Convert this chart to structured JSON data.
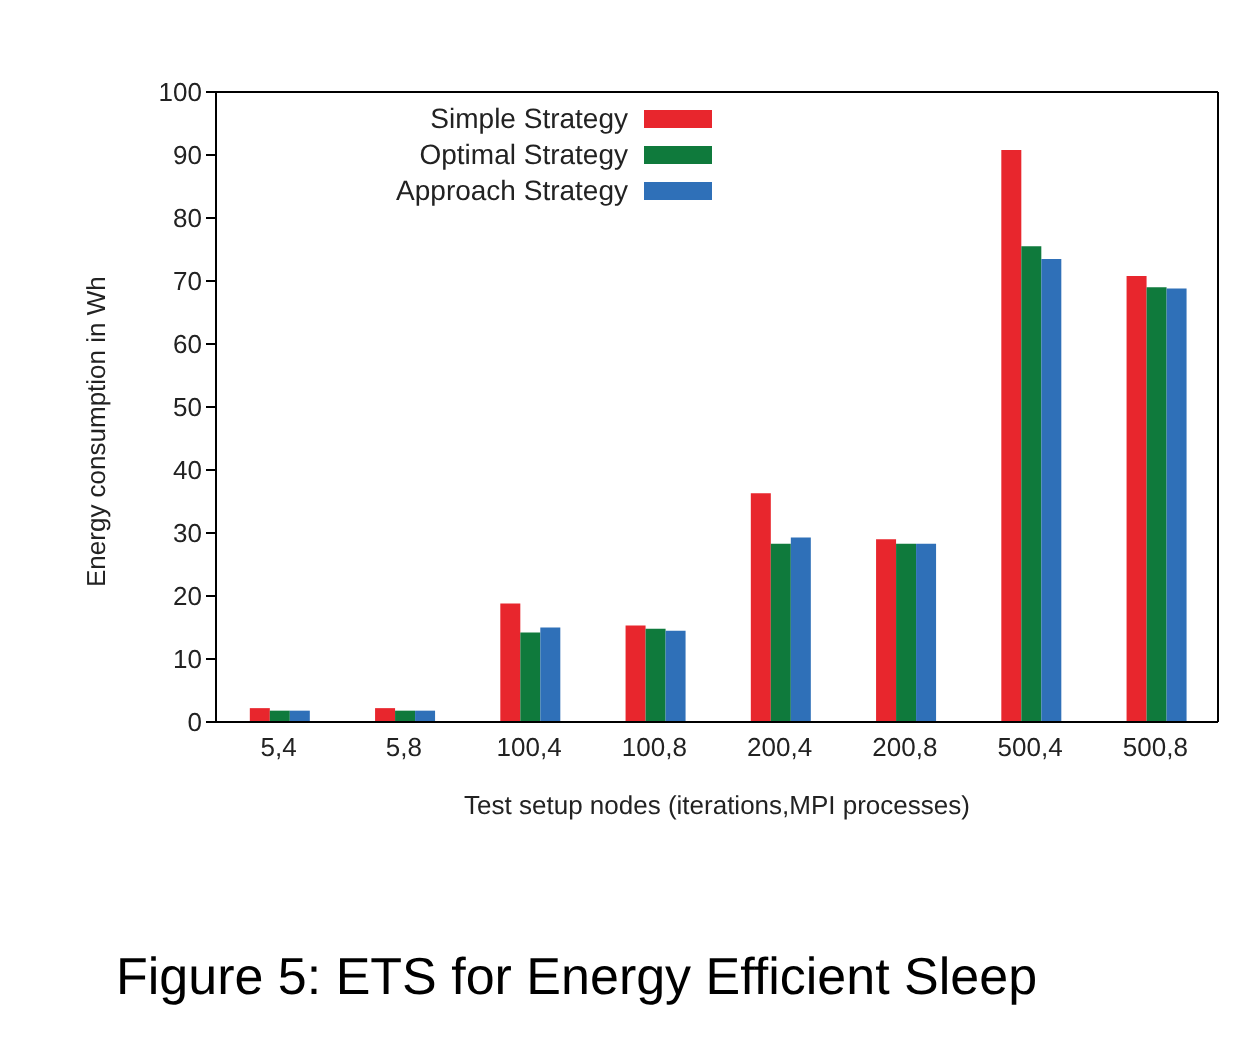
{
  "chart_data": {
    "type": "bar",
    "xlabel": "Test setup nodes (iterations,MPI processes)",
    "ylabel": "Energy consumption in Wh",
    "categories": [
      "5,4",
      "5,8",
      "100,4",
      "100,8",
      "200,4",
      "200,8",
      "500,4",
      "500,8"
    ],
    "series": [
      {
        "name": "Simple Strategy",
        "color": "#e8262d",
        "values": [
          2.2,
          2.2,
          18.8,
          15.3,
          36.3,
          29,
          90.8,
          70.8
        ]
      },
      {
        "name": "Optimal Strategy",
        "color": "#0f7a3c",
        "values": [
          1.8,
          1.8,
          14.2,
          14.8,
          28.3,
          28.3,
          75.5,
          69
        ]
      },
      {
        "name": "Approach Strategy",
        "color": "#2f70b8",
        "values": [
          1.8,
          1.8,
          15,
          14.5,
          29.3,
          28.3,
          73.5,
          68.8
        ]
      }
    ],
    "ylim": [
      0,
      100
    ],
    "yticks": [
      0,
      10,
      20,
      30,
      40,
      50,
      60,
      70,
      80,
      90,
      100
    ],
    "grid": false,
    "legend": "top left",
    "annotations": [
      "Figure 5: ETS for Energy Efficient Sleep"
    ]
  }
}
